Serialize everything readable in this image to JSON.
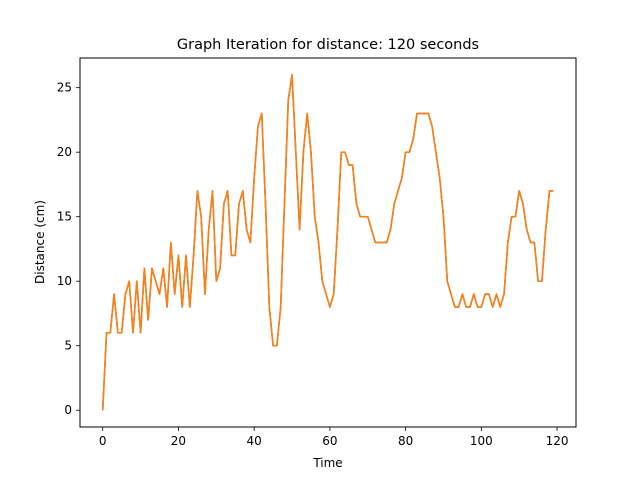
{
  "chart_data": {
    "type": "line",
    "title": "Graph Iteration for distance: 120 seconds",
    "xlabel": "Time",
    "ylabel": "Distance (cm)",
    "xlim": [
      -6,
      125
    ],
    "ylim": [
      -1.3,
      27.3
    ],
    "xticks": [
      0,
      20,
      40,
      60,
      80,
      100,
      120
    ],
    "yticks": [
      0,
      5,
      10,
      15,
      20,
      25
    ],
    "grid": false,
    "series": [
      {
        "color": "#ff7f0e",
        "overlay_color": "#1f77b4",
        "x": [
          0,
          1,
          2,
          3,
          4,
          5,
          6,
          7,
          8,
          9,
          10,
          11,
          12,
          13,
          14,
          15,
          16,
          17,
          18,
          19,
          20,
          21,
          22,
          23,
          24,
          25,
          26,
          27,
          28,
          29,
          30,
          31,
          32,
          33,
          34,
          35,
          36,
          37,
          38,
          39,
          40,
          41,
          42,
          43,
          44,
          45,
          46,
          47,
          48,
          49,
          50,
          51,
          52,
          53,
          54,
          55,
          56,
          57,
          58,
          59,
          60,
          61,
          62,
          63,
          64,
          65,
          66,
          67,
          68,
          69,
          70,
          71,
          72,
          73,
          74,
          75,
          76,
          77,
          78,
          79,
          80,
          81,
          82,
          83,
          84,
          85,
          86,
          87,
          88,
          89,
          90,
          91,
          92,
          93,
          94,
          95,
          96,
          97,
          98,
          99,
          100,
          101,
          102,
          103,
          104,
          105,
          106,
          107,
          108,
          109,
          110,
          111,
          112,
          113,
          114,
          115,
          116,
          117,
          118,
          119
        ],
        "values": [
          0,
          6,
          6,
          9,
          6,
          6,
          9,
          10,
          6,
          10,
          6,
          11,
          7,
          11,
          10,
          9,
          11,
          8,
          13,
          9,
          12,
          8,
          12,
          8,
          12,
          17,
          15,
          9,
          14,
          17,
          10,
          11,
          16,
          17,
          12,
          12,
          16,
          17,
          14,
          13,
          18,
          22,
          23,
          16,
          8,
          5,
          5,
          8,
          16,
          24,
          26,
          20,
          14,
          20,
          23,
          20,
          15,
          13,
          10,
          9,
          8,
          9,
          14,
          20,
          20,
          19,
          19,
          16,
          15,
          15,
          15,
          14,
          13,
          13,
          13,
          13,
          14,
          16,
          17,
          18,
          20,
          20,
          21,
          23,
          23,
          23,
          23,
          22,
          20,
          18,
          15,
          10,
          9,
          8,
          8,
          9,
          8,
          8,
          9,
          8,
          8,
          9,
          9,
          8,
          9,
          8,
          9,
          13,
          15,
          15,
          17,
          16,
          14,
          13,
          13,
          10,
          10,
          14,
          17,
          17
        ]
      }
    ]
  }
}
